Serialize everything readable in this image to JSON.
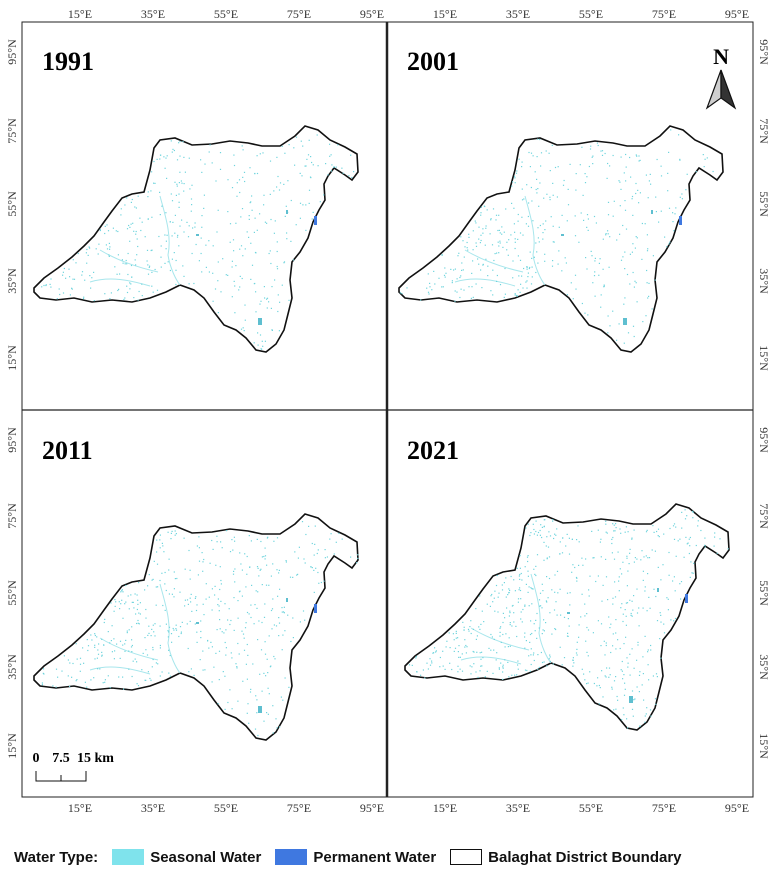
{
  "panels": [
    {
      "year": "1991",
      "seed": 3,
      "density": 0.85
    },
    {
      "year": "2001",
      "seed": 7,
      "density": 0.85
    },
    {
      "year": "2011",
      "seed": 11,
      "density": 1.0
    },
    {
      "year": "2021",
      "seed": 19,
      "density": 1.25
    }
  ],
  "lon_ticks": [
    "15°E",
    "35°E",
    "55°E",
    "75°E",
    "95°E"
  ],
  "lat_ticks": [
    "15°N",
    "35°N",
    "55°N",
    "75°N",
    "95°N"
  ],
  "north_arrow": {
    "label": "N",
    "icon": "north-arrow-icon"
  },
  "scale_bar": {
    "labels": [
      "0",
      "7.5",
      "15 km"
    ]
  },
  "legend": {
    "title": "Water Type:",
    "items": [
      {
        "label": "Seasonal Water",
        "color": "#7fe3ec"
      },
      {
        "label": "Permanent Water",
        "color": "#3f78e0"
      },
      {
        "label": "Balaghat District Boundary",
        "color": "#ffffff"
      }
    ]
  },
  "colors": {
    "seasonal": "#6fd4dd",
    "permanent": "#3f78e0",
    "boundary": "#111111"
  }
}
